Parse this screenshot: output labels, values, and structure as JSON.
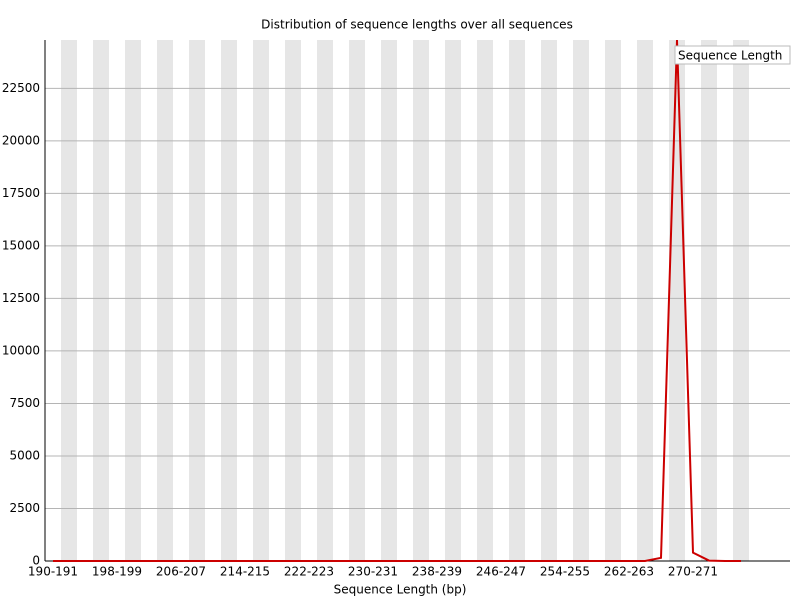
{
  "chart_data": {
    "type": "line",
    "title": "Distribution of sequence lengths over all sequences",
    "x_label": "Sequence Length (bp)",
    "categories": [
      "190-191",
      null,
      null,
      null,
      "198-199",
      null,
      null,
      null,
      "206-207",
      null,
      null,
      null,
      "214-215",
      null,
      null,
      null,
      "222-223",
      null,
      null,
      null,
      "230-231",
      null,
      null,
      null,
      "238-239",
      null,
      null,
      null,
      "246-247",
      null,
      null,
      null,
      "254-255",
      null,
      null,
      null,
      "262-263",
      null,
      null,
      null,
      "270-271",
      null,
      null,
      null
    ],
    "series": [
      {
        "name": "Sequence Length",
        "color": "#cc0000",
        "values": [
          0,
          0,
          0,
          0,
          0,
          0,
          0,
          0,
          0,
          0,
          0,
          0,
          0,
          0,
          0,
          0,
          0,
          0,
          0,
          0,
          0,
          0,
          0,
          0,
          0,
          0,
          0,
          0,
          0,
          0,
          0,
          0,
          0,
          0,
          0,
          0,
          0,
          0,
          150,
          24800,
          400,
          20,
          0,
          0
        ]
      }
    ],
    "ylim": [
      0,
      24800
    ],
    "yticks": [
      0,
      2500,
      5000,
      7500,
      10000,
      12500,
      15000,
      17500,
      20000,
      22500
    ],
    "grid": true,
    "legend": "top-right"
  }
}
